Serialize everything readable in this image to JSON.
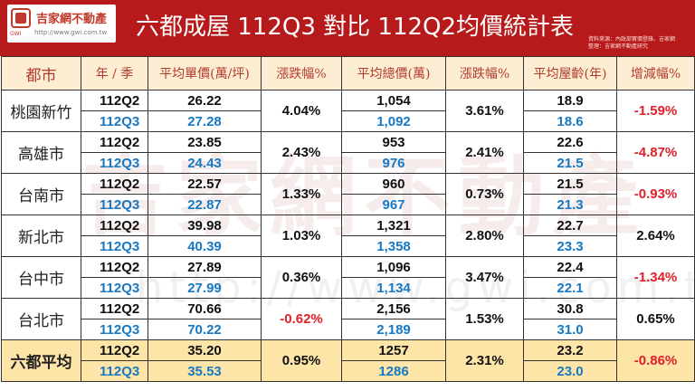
{
  "header": {
    "title": "六都成屋 112Q3 對比 112Q2均價統計表",
    "source_line1": "資料來源：內政部實價登錄、吉家網",
    "source_line2": "整理：吉家網不動產研究",
    "bg_color": "#b71a1a"
  },
  "logo": {
    "name": "吉家網不動產",
    "url": "http://www.gwi.com.tw",
    "brand": "GWI"
  },
  "watermark": {
    "text": "吉家網不動產",
    "url": "http://www.gwi.com.tw"
  },
  "table": {
    "headers": [
      "都市",
      "年 / 季",
      "平均單價(萬/坪)",
      "漲跌幅%",
      "平均總價(萬)",
      "漲跌幅%",
      "平均屋齡(年)",
      "增減幅%"
    ],
    "rows": [
      {
        "city": "桃園新竹",
        "q_prev": "112Q2",
        "q_cur": "112Q3",
        "unit_prev": "26.22",
        "unit_cur": "27.28",
        "unit_change": "4.04%",
        "total_prev": "1,054",
        "total_cur": "1,092",
        "total_change": "3.61%",
        "age_prev": "18.9",
        "age_cur": "18.6",
        "age_change": "-1.59%"
      },
      {
        "city": "高雄市",
        "q_prev": "112Q2",
        "q_cur": "112Q3",
        "unit_prev": "23.85",
        "unit_cur": "24.43",
        "unit_change": "2.43%",
        "total_prev": "953",
        "total_cur": "976",
        "total_change": "2.41%",
        "age_prev": "22.6",
        "age_cur": "21.5",
        "age_change": "-4.87%"
      },
      {
        "city": "台南市",
        "q_prev": "112Q2",
        "q_cur": "112Q3",
        "unit_prev": "22.57",
        "unit_cur": "22.87",
        "unit_change": "1.33%",
        "total_prev": "960",
        "total_cur": "967",
        "total_change": "0.73%",
        "age_prev": "21.5",
        "age_cur": "21.3",
        "age_change": "-0.93%"
      },
      {
        "city": "新北市",
        "q_prev": "112Q2",
        "q_cur": "112Q3",
        "unit_prev": "39.98",
        "unit_cur": "40.39",
        "unit_change": "1.03%",
        "total_prev": "1,321",
        "total_cur": "1,358",
        "total_change": "2.80%",
        "age_prev": "22.7",
        "age_cur": "23.3",
        "age_change": "2.64%"
      },
      {
        "city": "台中市",
        "q_prev": "112Q2",
        "q_cur": "112Q3",
        "unit_prev": "27.89",
        "unit_cur": "27.99",
        "unit_change": "0.36%",
        "total_prev": "1,096",
        "total_cur": "1,134",
        "total_change": "3.47%",
        "age_prev": "22.4",
        "age_cur": "22.1",
        "age_change": "-1.34%"
      },
      {
        "city": "台北市",
        "q_prev": "112Q2",
        "q_cur": "112Q3",
        "unit_prev": "70.66",
        "unit_cur": "70.22",
        "unit_change": "-0.62%",
        "total_prev": "2,156",
        "total_cur": "2,189",
        "total_change": "1.53%",
        "age_prev": "30.8",
        "age_cur": "31.0",
        "age_change": "0.65%"
      },
      {
        "city": "六都平均",
        "q_prev": "112Q2",
        "q_cur": "112Q3",
        "unit_prev": "35.20",
        "unit_cur": "35.53",
        "unit_change": "0.95%",
        "total_prev": "1257",
        "total_cur": "1286",
        "total_change": "2.31%",
        "age_prev": "23.2",
        "age_cur": "23.0",
        "age_change": "-0.86%"
      }
    ]
  },
  "colors": {
    "header_fill": "#fdeed3",
    "header_text": "#b43a2c",
    "current_quarter": "#1778c4",
    "negative": "#e0202a",
    "average_row": "#fde5a8"
  }
}
